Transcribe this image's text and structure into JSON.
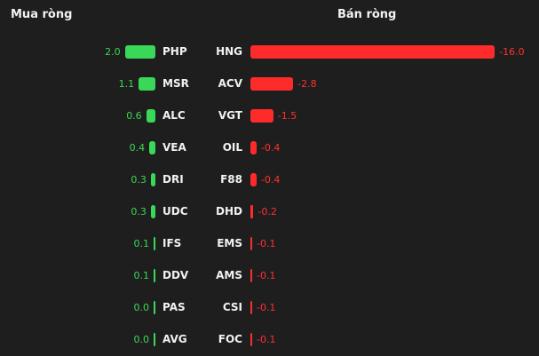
{
  "titles": {
    "buy": "Mua ròng",
    "sell": "Bán ròng"
  },
  "colors": {
    "buy": "#3ad858",
    "sell": "#ff2a2a",
    "background": "#1e1e1e"
  },
  "chart_data": [
    {
      "type": "bar",
      "orientation": "horizontal",
      "title": "Mua ròng",
      "categories": [
        "PHP",
        "MSR",
        "ALC",
        "VEA",
        "DRI",
        "UDC",
        "IFS",
        "DDV",
        "PAS",
        "AVG"
      ],
      "values": [
        2.0,
        1.1,
        0.6,
        0.4,
        0.3,
        0.3,
        0.1,
        0.1,
        0.0,
        0.0
      ],
      "labels": [
        "2.0",
        "1.1",
        "0.6",
        "0.4",
        "0.3",
        "0.3",
        "0.1",
        "0.1",
        "0.0",
        "0.0"
      ]
    },
    {
      "type": "bar",
      "orientation": "horizontal",
      "title": "Bán ròng",
      "categories": [
        "HNG",
        "ACV",
        "VGT",
        "OIL",
        "F88",
        "DHD",
        "EMS",
        "AMS",
        "CSI",
        "FOC"
      ],
      "values": [
        -16.0,
        -2.8,
        -1.5,
        -0.4,
        -0.4,
        -0.2,
        -0.1,
        -0.1,
        -0.1,
        -0.1
      ],
      "labels": [
        "-16.0",
        "-2.8",
        "-1.5",
        "-0.4",
        "-0.4",
        "-0.2",
        "-0.1",
        "-0.1",
        "-0.1",
        "-0.1"
      ]
    }
  ]
}
